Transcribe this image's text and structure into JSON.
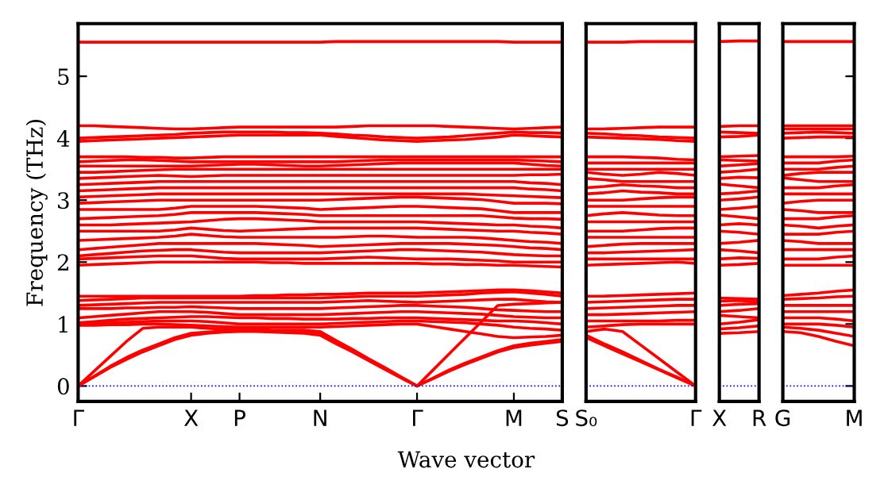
{
  "chart_data": [
    {
      "type": "line",
      "ylabel": "Frequency (THz)",
      "xlabel": "Wave vector",
      "categories": [
        "Γ",
        null,
        null,
        null,
        null,
        null,
        null,
        "X",
        null,
        null,
        "P",
        null,
        null,
        null,
        null,
        "N",
        null,
        null,
        null,
        null,
        null,
        "Γ",
        null,
        null,
        null,
        null,
        null,
        "M",
        null,
        null,
        "S"
      ],
      "ylim": [
        -0.25,
        5.85
      ],
      "yticks": [
        0,
        1,
        2,
        3,
        4,
        5
      ],
      "ref_lines": [
        {
          "axis": "y",
          "value": 0,
          "color": "#0000ff",
          "line_style": "dotted"
        }
      ],
      "series": [
        {
          "color": "#ff0000",
          "values": [
            0,
            0.15,
            0.3,
            0.43,
            0.55,
            0.65,
            0.75,
            0.82,
            0.85,
            0.87,
            0.88,
            0.88,
            0.87,
            0.86,
            0.85,
            0.82,
            0.68,
            0.55,
            0.41,
            0.27,
            0.13,
            0,
            0.12,
            0.24,
            0.35,
            0.45,
            0.55,
            0.62,
            0.66,
            0.69,
            0.72
          ]
        },
        {
          "color": "#ff0000",
          "values": [
            0,
            0.16,
            0.32,
            0.46,
            0.58,
            0.68,
            0.78,
            0.85,
            0.87,
            0.89,
            0.9,
            0.9,
            0.89,
            0.88,
            0.87,
            0.85,
            0.7,
            0.56,
            0.42,
            0.28,
            0.14,
            0,
            0.13,
            0.26,
            0.37,
            0.47,
            0.57,
            0.65,
            0.69,
            0.72,
            0.75
          ]
        },
        {
          "color": "#ff0000",
          "values": [
            0,
            0.24,
            0.48,
            0.72,
            0.93,
            0.95,
            0.95,
            0.95,
            0.93,
            0.92,
            0.92,
            0.92,
            0.9,
            0.9,
            0.9,
            0.88,
            0.73,
            0.59,
            0.44,
            0.3,
            0.15,
            0,
            0.26,
            0.52,
            0.78,
            1.04,
            1.3,
            1.32,
            1.33,
            1.34,
            1.35
          ]
        },
        {
          "color": "#ff0000",
          "values": [
            0.98,
            0.98,
            0.99,
            0.99,
            1.0,
            1.0,
            0.99,
            0.98,
            0.97,
            0.96,
            0.95,
            0.95,
            0.95,
            0.95,
            0.95,
            0.95,
            0.96,
            0.97,
            0.98,
            0.99,
            1.0,
            1.0,
            0.96,
            0.92,
            0.88,
            0.84,
            0.8,
            0.78,
            0.79,
            0.8,
            0.82
          ]
        },
        {
          "color": "#ff0000",
          "values": [
            1.0,
            1.01,
            1.02,
            1.03,
            1.04,
            1.05,
            1.05,
            1.05,
            1.04,
            1.02,
            1.0,
            1.0,
            1.0,
            1.0,
            1.0,
            1.0,
            1.01,
            1.02,
            1.03,
            1.04,
            1.05,
            1.05,
            1.04,
            1.03,
            1.02,
            1.0,
            0.98,
            0.95,
            0.93,
            0.92,
            0.9
          ]
        },
        {
          "color": "#ff0000",
          "values": [
            1.02,
            1.04,
            1.06,
            1.08,
            1.09,
            1.1,
            1.11,
            1.12,
            1.12,
            1.11,
            1.1,
            1.1,
            1.09,
            1.09,
            1.08,
            1.08,
            1.08,
            1.09,
            1.09,
            1.1,
            1.1,
            1.1,
            1.09,
            1.08,
            1.07,
            1.06,
            1.05,
            1.05,
            1.04,
            1.02,
            1.0
          ]
        },
        {
          "color": "#ff0000",
          "values": [
            1.1,
            1.12,
            1.14,
            1.16,
            1.18,
            1.2,
            1.2,
            1.2,
            1.19,
            1.17,
            1.15,
            1.15,
            1.15,
            1.15,
            1.15,
            1.15,
            1.16,
            1.17,
            1.18,
            1.19,
            1.2,
            1.2,
            1.19,
            1.18,
            1.17,
            1.16,
            1.14,
            1.12,
            1.11,
            1.1,
            1.1
          ]
        },
        {
          "color": "#ff0000",
          "values": [
            1.25,
            1.25,
            1.25,
            1.26,
            1.26,
            1.27,
            1.27,
            1.28,
            1.27,
            1.26,
            1.25,
            1.25,
            1.25,
            1.25,
            1.25,
            1.25,
            1.26,
            1.27,
            1.28,
            1.29,
            1.3,
            1.3,
            1.29,
            1.28,
            1.27,
            1.25,
            1.23,
            1.22,
            1.21,
            1.2,
            1.2
          ]
        },
        {
          "color": "#ff0000",
          "values": [
            1.3,
            1.31,
            1.32,
            1.33,
            1.34,
            1.35,
            1.35,
            1.35,
            1.35,
            1.35,
            1.35,
            1.35,
            1.35,
            1.35,
            1.35,
            1.35,
            1.36,
            1.37,
            1.38,
            1.37,
            1.36,
            1.35,
            1.36,
            1.37,
            1.38,
            1.39,
            1.4,
            1.4,
            1.38,
            1.36,
            1.35
          ]
        },
        {
          "color": "#ff0000",
          "values": [
            1.38,
            1.39,
            1.4,
            1.41,
            1.42,
            1.42,
            1.42,
            1.42,
            1.42,
            1.42,
            1.42,
            1.42,
            1.42,
            1.42,
            1.42,
            1.42,
            1.43,
            1.44,
            1.45,
            1.45,
            1.45,
            1.45,
            1.46,
            1.47,
            1.48,
            1.5,
            1.51,
            1.52,
            1.5,
            1.48,
            1.45
          ]
        },
        {
          "color": "#ff0000",
          "values": [
            1.45,
            1.45,
            1.45,
            1.45,
            1.45,
            1.45,
            1.45,
            1.45,
            1.45,
            1.45,
            1.45,
            1.46,
            1.46,
            1.47,
            1.47,
            1.48,
            1.48,
            1.49,
            1.5,
            1.5,
            1.5,
            1.5,
            1.51,
            1.52,
            1.53,
            1.54,
            1.55,
            1.55,
            1.54,
            1.52,
            1.5
          ]
        },
        {
          "color": "#ff0000",
          "values": [
            1.95,
            1.96,
            1.97,
            1.98,
            1.99,
            2.0,
            2.0,
            2.0,
            2.0,
            2.0,
            2.0,
            2.0,
            1.99,
            1.99,
            1.98,
            1.98,
            1.98,
            1.98,
            1.98,
            1.98,
            1.98,
            1.98,
            1.97,
            1.97,
            1.96,
            1.96,
            1.95,
            1.95,
            1.94,
            1.93,
            1.92
          ]
        },
        {
          "color": "#ff0000",
          "values": [
            2.05,
            2.06,
            2.07,
            2.08,
            2.09,
            2.1,
            2.1,
            2.1,
            2.08,
            2.06,
            2.05,
            2.05,
            2.05,
            2.05,
            2.05,
            2.05,
            2.06,
            2.07,
            2.08,
            2.07,
            2.06,
            2.05,
            2.05,
            2.05,
            2.04,
            2.03,
            2.02,
            2.0,
            2.0,
            2.0,
            2.0
          ]
        },
        {
          "color": "#ff0000",
          "values": [
            2.1,
            2.12,
            2.14,
            2.16,
            2.18,
            2.19,
            2.2,
            2.2,
            2.18,
            2.16,
            2.15,
            2.15,
            2.15,
            2.15,
            2.15,
            2.15,
            2.16,
            2.17,
            2.18,
            2.19,
            2.2,
            2.2,
            2.19,
            2.18,
            2.17,
            2.16,
            2.14,
            2.12,
            2.11,
            2.1,
            2.1
          ]
        },
        {
          "color": "#ff0000",
          "values": [
            2.2,
            2.22,
            2.24,
            2.26,
            2.28,
            2.3,
            2.3,
            2.3,
            2.3,
            2.3,
            2.3,
            2.3,
            2.29,
            2.28,
            2.27,
            2.25,
            2.26,
            2.27,
            2.28,
            2.29,
            2.3,
            2.3,
            2.3,
            2.3,
            2.29,
            2.28,
            2.27,
            2.25,
            2.23,
            2.22,
            2.2
          ]
        },
        {
          "color": "#ff0000",
          "values": [
            2.35,
            2.36,
            2.37,
            2.38,
            2.39,
            2.4,
            2.42,
            2.45,
            2.43,
            2.41,
            2.4,
            2.4,
            2.4,
            2.4,
            2.4,
            2.4,
            2.4,
            2.41,
            2.42,
            2.42,
            2.41,
            2.4,
            2.4,
            2.4,
            2.4,
            2.39,
            2.37,
            2.35,
            2.33,
            2.32,
            2.3
          ]
        },
        {
          "color": "#ff0000",
          "values": [
            2.5,
            2.5,
            2.5,
            2.5,
            2.5,
            2.5,
            2.52,
            2.55,
            2.53,
            2.51,
            2.5,
            2.51,
            2.52,
            2.53,
            2.54,
            2.55,
            2.55,
            2.55,
            2.55,
            2.55,
            2.55,
            2.55,
            2.54,
            2.53,
            2.52,
            2.51,
            2.5,
            2.5,
            2.48,
            2.47,
            2.45
          ]
        },
        {
          "color": "#ff0000",
          "values": [
            2.6,
            2.6,
            2.6,
            2.61,
            2.62,
            2.63,
            2.64,
            2.65,
            2.67,
            2.69,
            2.7,
            2.7,
            2.69,
            2.68,
            2.67,
            2.65,
            2.65,
            2.65,
            2.65,
            2.65,
            2.65,
            2.65,
            2.64,
            2.63,
            2.62,
            2.61,
            2.6,
            2.6,
            2.58,
            2.57,
            2.55
          ]
        },
        {
          "color": "#ff0000",
          "values": [
            2.7,
            2.71,
            2.72,
            2.73,
            2.74,
            2.75,
            2.77,
            2.8,
            2.8,
            2.8,
            2.8,
            2.8,
            2.79,
            2.78,
            2.77,
            2.75,
            2.75,
            2.75,
            2.75,
            2.75,
            2.75,
            2.75,
            2.75,
            2.75,
            2.75,
            2.75,
            2.73,
            2.71,
            2.7,
            2.7,
            2.69
          ]
        },
        {
          "color": "#ff0000",
          "values": [
            2.85,
            2.85,
            2.85,
            2.85,
            2.85,
            2.85,
            2.87,
            2.9,
            2.9,
            2.9,
            2.9,
            2.9,
            2.89,
            2.88,
            2.87,
            2.85,
            2.86,
            2.87,
            2.88,
            2.89,
            2.9,
            2.9,
            2.89,
            2.88,
            2.87,
            2.86,
            2.83,
            2.8,
            2.8,
            2.8,
            2.8
          ]
        },
        {
          "color": "#ff0000",
          "values": [
            2.95,
            2.96,
            2.97,
            2.98,
            2.99,
            3.0,
            3.0,
            3.0,
            3.0,
            3.0,
            3.0,
            3.0,
            3.0,
            3.0,
            3.0,
            3.0,
            3.01,
            3.02,
            3.03,
            3.04,
            3.05,
            3.05,
            3.04,
            3.03,
            3.02,
            3.01,
            2.98,
            2.95,
            2.95,
            2.95,
            2.94
          ]
        },
        {
          "color": "#ff0000",
          "values": [
            3.05,
            3.06,
            3.07,
            3.08,
            3.09,
            3.1,
            3.1,
            3.1,
            3.1,
            3.1,
            3.1,
            3.1,
            3.1,
            3.1,
            3.1,
            3.1,
            3.1,
            3.1,
            3.1,
            3.1,
            3.1,
            3.1,
            3.1,
            3.1,
            3.1,
            3.09,
            3.08,
            3.07,
            3.06,
            3.05,
            3.04
          ]
        },
        {
          "color": "#ff0000",
          "values": [
            3.15,
            3.16,
            3.17,
            3.18,
            3.19,
            3.2,
            3.2,
            3.2,
            3.2,
            3.2,
            3.2,
            3.2,
            3.2,
            3.2,
            3.2,
            3.2,
            3.2,
            3.2,
            3.2,
            3.2,
            3.2,
            3.2,
            3.2,
            3.2,
            3.2,
            3.2,
            3.2,
            3.2,
            3.18,
            3.17,
            3.15
          ]
        },
        {
          "color": "#ff0000",
          "values": [
            3.25,
            3.26,
            3.27,
            3.28,
            3.29,
            3.3,
            3.3,
            3.3,
            3.3,
            3.3,
            3.3,
            3.3,
            3.3,
            3.3,
            3.3,
            3.3,
            3.3,
            3.3,
            3.3,
            3.3,
            3.3,
            3.3,
            3.3,
            3.3,
            3.3,
            3.3,
            3.3,
            3.3,
            3.28,
            3.27,
            3.25
          ]
        },
        {
          "color": "#ff0000",
          "values": [
            3.35,
            3.36,
            3.37,
            3.38,
            3.39,
            3.4,
            3.39,
            3.38,
            3.39,
            3.4,
            3.4,
            3.4,
            3.4,
            3.4,
            3.4,
            3.4,
            3.4,
            3.4,
            3.4,
            3.4,
            3.4,
            3.4,
            3.4,
            3.4,
            3.4,
            3.4,
            3.4,
            3.4,
            3.41,
            3.41,
            3.42
          ]
        },
        {
          "color": "#ff0000",
          "values": [
            3.45,
            3.45,
            3.46,
            3.47,
            3.48,
            3.49,
            3.5,
            3.5,
            3.5,
            3.5,
            3.5,
            3.5,
            3.5,
            3.5,
            3.5,
            3.5,
            3.5,
            3.5,
            3.5,
            3.5,
            3.5,
            3.5,
            3.5,
            3.5,
            3.5,
            3.5,
            3.5,
            3.5,
            3.5,
            3.5,
            3.5
          ]
        },
        {
          "color": "#ff0000",
          "values": [
            3.55,
            3.55,
            3.55,
            3.55,
            3.55,
            3.55,
            3.55,
            3.55,
            3.56,
            3.57,
            3.58,
            3.58,
            3.57,
            3.56,
            3.55,
            3.55,
            3.56,
            3.57,
            3.58,
            3.59,
            3.6,
            3.6,
            3.6,
            3.6,
            3.6,
            3.6,
            3.6,
            3.6,
            3.58,
            3.56,
            3.55
          ]
        },
        {
          "color": "#ff0000",
          "values": [
            3.62,
            3.63,
            3.64,
            3.65,
            3.65,
            3.64,
            3.63,
            3.62,
            3.62,
            3.62,
            3.62,
            3.62,
            3.62,
            3.62,
            3.62,
            3.62,
            3.62,
            3.63,
            3.64,
            3.65,
            3.65,
            3.65,
            3.65,
            3.65,
            3.65,
            3.65,
            3.65,
            3.65,
            3.64,
            3.63,
            3.62
          ]
        },
        {
          "color": "#ff0000",
          "values": [
            3.7,
            3.7,
            3.7,
            3.7,
            3.69,
            3.69,
            3.68,
            3.68,
            3.69,
            3.7,
            3.7,
            3.7,
            3.7,
            3.7,
            3.7,
            3.7,
            3.7,
            3.7,
            3.7,
            3.7,
            3.7,
            3.7,
            3.7,
            3.7,
            3.7,
            3.7,
            3.7,
            3.7,
            3.7,
            3.7,
            3.7
          ]
        },
        {
          "color": "#ff0000",
          "values": [
            3.95,
            3.96,
            3.97,
            3.98,
            3.99,
            4.0,
            4.01,
            4.02,
            4.03,
            4.04,
            4.05,
            4.05,
            4.05,
            4.05,
            4.05,
            4.05,
            4.03,
            4.01,
            3.99,
            3.97,
            3.96,
            3.95,
            3.96,
            3.97,
            3.98,
            4.0,
            4.02,
            4.05,
            4.04,
            4.03,
            4.02
          ]
        },
        {
          "color": "#ff0000",
          "values": [
            4.0,
            4.01,
            4.02,
            4.03,
            4.04,
            4.05,
            4.06,
            4.08,
            4.09,
            4.1,
            4.1,
            4.1,
            4.1,
            4.09,
            4.09,
            4.08,
            4.07,
            4.05,
            4.04,
            4.02,
            4.01,
            4.0,
            4.01,
            4.02,
            4.04,
            4.06,
            4.08,
            4.1,
            4.09,
            4.09,
            4.08
          ]
        },
        {
          "color": "#ff0000",
          "values": [
            4.2,
            4.2,
            4.19,
            4.18,
            4.17,
            4.16,
            4.15,
            4.15,
            4.16,
            4.17,
            4.18,
            4.18,
            4.18,
            4.18,
            4.18,
            4.18,
            4.18,
            4.19,
            4.2,
            4.2,
            4.2,
            4.2,
            4.2,
            4.19,
            4.18,
            4.17,
            4.16,
            4.15,
            4.16,
            4.17,
            4.18
          ]
        },
        {
          "color": "#ff0000",
          "values": [
            5.55,
            5.55,
            5.55,
            5.55,
            5.55,
            5.55,
            5.55,
            5.55,
            5.55,
            5.55,
            5.55,
            5.55,
            5.55,
            5.55,
            5.55,
            5.55,
            5.56,
            5.56,
            5.56,
            5.56,
            5.56,
            5.56,
            5.56,
            5.56,
            5.56,
            5.56,
            5.56,
            5.55,
            5.55,
            5.55,
            5.55
          ]
        }
      ]
    },
    {
      "type": "line",
      "tick_labels": "x",
      "categories": [
        "S₀",
        null,
        null,
        null,
        null,
        null,
        "Γ"
      ],
      "ylim": [
        -0.25,
        5.85
      ],
      "yticks": [
        0,
        1,
        2,
        3,
        4,
        5
      ],
      "ref_lines": [
        {
          "axis": "y",
          "value": 0,
          "color": "#0000ff",
          "line_style": "dotted"
        }
      ],
      "series": [
        {
          "color": "#ff0000",
          "values": [
            0.78,
            0.65,
            0.52,
            0.39,
            0.26,
            0.13,
            0
          ]
        },
        {
          "color": "#ff0000",
          "values": [
            0.82,
            0.68,
            0.55,
            0.41,
            0.27,
            0.14,
            0
          ]
        },
        {
          "color": "#ff0000",
          "values": [
            0.88,
            0.92,
            0.88,
            0.66,
            0.44,
            0.22,
            0
          ]
        },
        {
          "color": "#ff0000",
          "values": [
            0.95,
            0.97,
            0.99,
            1.0,
            1.0,
            1.0,
            1.0
          ]
        },
        {
          "color": "#ff0000",
          "values": [
            1.05,
            1.05,
            1.05,
            1.05,
            1.05,
            1.06,
            1.06
          ]
        },
        {
          "color": "#ff0000",
          "values": [
            1.15,
            1.15,
            1.16,
            1.17,
            1.18,
            1.19,
            1.2
          ]
        },
        {
          "color": "#ff0000",
          "values": [
            1.25,
            1.26,
            1.27,
            1.28,
            1.29,
            1.3,
            1.3
          ]
        },
        {
          "color": "#ff0000",
          "values": [
            1.35,
            1.36,
            1.37,
            1.38,
            1.39,
            1.4,
            1.4
          ]
        },
        {
          "color": "#ff0000",
          "values": [
            1.45,
            1.45,
            1.46,
            1.47,
            1.48,
            1.49,
            1.5
          ]
        },
        {
          "color": "#ff0000",
          "values": [
            1.95,
            1.96,
            1.97,
            1.98,
            1.99,
            2.0,
            1.98
          ]
        },
        {
          "color": "#ff0000",
          "values": [
            2.05,
            2.05,
            2.05,
            2.05,
            2.05,
            2.05,
            2.05
          ]
        },
        {
          "color": "#ff0000",
          "values": [
            2.15,
            2.15,
            2.16,
            2.17,
            2.18,
            2.19,
            2.2
          ]
        },
        {
          "color": "#ff0000",
          "values": [
            2.25,
            2.27,
            2.29,
            2.3,
            2.3,
            2.3,
            2.3
          ]
        },
        {
          "color": "#ff0000",
          "values": [
            2.4,
            2.4,
            2.4,
            2.4,
            2.4,
            2.4,
            2.4
          ]
        },
        {
          "color": "#ff0000",
          "values": [
            2.5,
            2.5,
            2.5,
            2.52,
            2.54,
            2.55,
            2.55
          ]
        },
        {
          "color": "#ff0000",
          "values": [
            2.65,
            2.65,
            2.65,
            2.65,
            2.65,
            2.65,
            2.65
          ]
        },
        {
          "color": "#ff0000",
          "values": [
            2.75,
            2.78,
            2.8,
            2.78,
            2.76,
            2.75,
            2.75
          ]
        },
        {
          "color": "#ff0000",
          "values": [
            2.9,
            2.9,
            2.9,
            2.9,
            2.9,
            2.9,
            2.9
          ]
        },
        {
          "color": "#ff0000",
          "values": [
            3.0,
            3.0,
            3.0,
            3.02,
            3.04,
            3.05,
            3.05
          ]
        },
        {
          "color": "#ff0000",
          "values": [
            3.1,
            3.12,
            3.15,
            3.13,
            3.12,
            3.1,
            3.1
          ]
        },
        {
          "color": "#ff0000",
          "values": [
            3.2,
            3.22,
            3.25,
            3.23,
            3.22,
            3.2,
            3.2
          ]
        },
        {
          "color": "#ff0000",
          "values": [
            3.35,
            3.33,
            3.3,
            3.3,
            3.3,
            3.3,
            3.3
          ]
        },
        {
          "color": "#ff0000",
          "values": [
            3.45,
            3.42,
            3.4,
            3.42,
            3.45,
            3.43,
            3.4
          ]
        },
        {
          "color": "#ff0000",
          "values": [
            3.5,
            3.5,
            3.5,
            3.5,
            3.5,
            3.5,
            3.5
          ]
        },
        {
          "color": "#ff0000",
          "values": [
            3.6,
            3.6,
            3.6,
            3.6,
            3.6,
            3.6,
            3.6
          ]
        },
        {
          "color": "#ff0000",
          "values": [
            3.7,
            3.7,
            3.7,
            3.69,
            3.68,
            3.66,
            3.65
          ]
        },
        {
          "color": "#ff0000",
          "values": [
            4.02,
            4.01,
            4.0,
            3.99,
            3.98,
            3.96,
            3.95
          ]
        },
        {
          "color": "#ff0000",
          "values": [
            4.08,
            4.07,
            4.05,
            4.04,
            4.02,
            4.01,
            4.0
          ]
        },
        {
          "color": "#ff0000",
          "values": [
            4.15,
            4.15,
            4.16,
            4.17,
            4.18,
            4.18,
            4.18
          ]
        },
        {
          "color": "#ff0000",
          "values": [
            5.55,
            5.55,
            5.55,
            5.56,
            5.56,
            5.56,
            5.56
          ]
        }
      ]
    },
    {
      "type": "line",
      "tick_labels": "x",
      "categories": [
        "X",
        null,
        "R"
      ],
      "ylim": [
        -0.25,
        5.85
      ],
      "yticks": [
        0,
        1,
        2,
        3,
        4,
        5
      ],
      "ref_lines": [
        {
          "axis": "y",
          "value": 0,
          "color": "#0000ff",
          "line_style": "dotted"
        }
      ],
      "series": [
        {
          "color": "#ff0000",
          "values": [
            0.85,
            0.86,
            0.88
          ]
        },
        {
          "color": "#ff0000",
          "values": [
            0.92,
            0.94,
            0.97
          ]
        },
        {
          "color": "#ff0000",
          "values": [
            1.0,
            1.03,
            1.07
          ]
        },
        {
          "color": "#ff0000",
          "values": [
            1.14,
            1.12,
            1.1
          ]
        },
        {
          "color": "#ff0000",
          "values": [
            1.2,
            1.22,
            1.25
          ]
        },
        {
          "color": "#ff0000",
          "values": [
            1.3,
            1.32,
            1.33
          ]
        },
        {
          "color": "#ff0000",
          "values": [
            1.37,
            1.38,
            1.36
          ]
        },
        {
          "color": "#ff0000",
          "values": [
            1.42,
            1.41,
            1.4
          ]
        },
        {
          "color": "#ff0000",
          "values": [
            1.95,
            1.96,
            1.98
          ]
        },
        {
          "color": "#ff0000",
          "values": [
            2.05,
            2.07,
            2.06
          ]
        },
        {
          "color": "#ff0000",
          "values": [
            2.2,
            2.18,
            2.15
          ]
        },
        {
          "color": "#ff0000",
          "values": [
            2.3,
            2.32,
            2.35
          ]
        },
        {
          "color": "#ff0000",
          "values": [
            2.5,
            2.48,
            2.45
          ]
        },
        {
          "color": "#ff0000",
          "values": [
            2.6,
            2.62,
            2.6
          ]
        },
        {
          "color": "#ff0000",
          "values": [
            2.76,
            2.73,
            2.7
          ]
        },
        {
          "color": "#ff0000",
          "values": [
            2.85,
            2.87,
            2.9
          ]
        },
        {
          "color": "#ff0000",
          "values": [
            3.0,
            3.02,
            3.05
          ]
        },
        {
          "color": "#ff0000",
          "values": [
            3.1,
            3.12,
            3.15
          ]
        },
        {
          "color": "#ff0000",
          "values": [
            3.26,
            3.23,
            3.2
          ]
        },
        {
          "color": "#ff0000",
          "values": [
            3.35,
            3.37,
            3.36
          ]
        },
        {
          "color": "#ff0000",
          "values": [
            3.45,
            3.47,
            3.5
          ]
        },
        {
          "color": "#ff0000",
          "values": [
            3.55,
            3.57,
            3.59
          ]
        },
        {
          "color": "#ff0000",
          "values": [
            3.65,
            3.64,
            3.63
          ]
        },
        {
          "color": "#ff0000",
          "values": [
            3.7,
            3.71,
            3.72
          ]
        },
        {
          "color": "#ff0000",
          "values": [
            4.02,
            4.03,
            4.05
          ]
        },
        {
          "color": "#ff0000",
          "values": [
            4.1,
            4.09,
            4.08
          ]
        },
        {
          "color": "#ff0000",
          "values": [
            4.19,
            4.2,
            4.2
          ]
        },
        {
          "color": "#ff0000",
          "values": [
            5.56,
            5.57,
            5.57
          ]
        }
      ]
    },
    {
      "type": "line",
      "tick_labels": "x",
      "categories": [
        "G",
        null,
        null,
        null,
        "M"
      ],
      "ylim": [
        -0.25,
        5.85
      ],
      "yticks": [
        0,
        1,
        2,
        3,
        4,
        5
      ],
      "ref_lines": [
        {
          "axis": "y",
          "value": 0,
          "color": "#0000ff",
          "line_style": "dotted"
        }
      ],
      "series": [
        {
          "color": "#ff0000",
          "values": [
            0.88,
            0.86,
            0.8,
            0.72,
            0.65
          ]
        },
        {
          "color": "#ff0000",
          "values": [
            0.95,
            0.93,
            0.9,
            0.85,
            0.8
          ]
        },
        {
          "color": "#ff0000",
          "values": [
            1.0,
            1.0,
            1.0,
            0.98,
            0.95
          ]
        },
        {
          "color": "#ff0000",
          "values": [
            1.1,
            1.1,
            1.1,
            1.08,
            1.05
          ]
        },
        {
          "color": "#ff0000",
          "values": [
            1.2,
            1.2,
            1.2,
            1.2,
            1.2
          ]
        },
        {
          "color": "#ff0000",
          "values": [
            1.3,
            1.3,
            1.3,
            1.3,
            1.3
          ]
        },
        {
          "color": "#ff0000",
          "values": [
            1.4,
            1.41,
            1.42,
            1.44,
            1.45
          ]
        },
        {
          "color": "#ff0000",
          "values": [
            1.46,
            1.48,
            1.5,
            1.53,
            1.55
          ]
        },
        {
          "color": "#ff0000",
          "values": [
            1.95,
            1.95,
            1.95,
            1.95,
            1.95
          ]
        },
        {
          "color": "#ff0000",
          "values": [
            2.05,
            2.05,
            2.05,
            2.08,
            2.1
          ]
        },
        {
          "color": "#ff0000",
          "values": [
            2.2,
            2.2,
            2.2,
            2.2,
            2.2
          ]
        },
        {
          "color": "#ff0000",
          "values": [
            2.35,
            2.33,
            2.3,
            2.3,
            2.3
          ]
        },
        {
          "color": "#ff0000",
          "values": [
            2.45,
            2.45,
            2.45,
            2.48,
            2.5
          ]
        },
        {
          "color": "#ff0000",
          "values": [
            2.6,
            2.58,
            2.55,
            2.58,
            2.6
          ]
        },
        {
          "color": "#ff0000",
          "values": [
            2.7,
            2.7,
            2.7,
            2.73,
            2.75
          ]
        },
        {
          "color": "#ff0000",
          "values": [
            2.85,
            2.83,
            2.8,
            2.8,
            2.8
          ]
        },
        {
          "color": "#ff0000",
          "values": [
            2.95,
            2.98,
            3.0,
            3.0,
            3.0
          ]
        },
        {
          "color": "#ff0000",
          "values": [
            3.1,
            3.1,
            3.1,
            3.1,
            3.1
          ]
        },
        {
          "color": "#ff0000",
          "values": [
            3.2,
            3.2,
            3.2,
            3.23,
            3.25
          ]
        },
        {
          "color": "#ff0000",
          "values": [
            3.36,
            3.33,
            3.3,
            3.3,
            3.3
          ]
        },
        {
          "color": "#ff0000",
          "values": [
            3.4,
            3.43,
            3.45,
            3.45,
            3.45
          ]
        },
        {
          "color": "#ff0000",
          "values": [
            3.5,
            3.5,
            3.5,
            3.53,
            3.55
          ]
        },
        {
          "color": "#ff0000",
          "values": [
            3.6,
            3.6,
            3.6,
            3.63,
            3.65
          ]
        },
        {
          "color": "#ff0000",
          "values": [
            3.7,
            3.7,
            3.7,
            3.7,
            3.71
          ]
        },
        {
          "color": "#ff0000",
          "values": [
            4.0,
            4.01,
            4.02,
            4.02,
            4.02
          ]
        },
        {
          "color": "#ff0000",
          "values": [
            4.08,
            4.09,
            4.1,
            4.09,
            4.08
          ]
        },
        {
          "color": "#ff0000",
          "values": [
            4.15,
            4.15,
            4.15,
            4.15,
            4.15
          ]
        },
        {
          "color": "#ff0000",
          "values": [
            4.2,
            4.2,
            4.2,
            4.2,
            4.2
          ]
        },
        {
          "color": "#ff0000",
          "values": [
            5.56,
            5.56,
            5.56,
            5.56,
            5.56
          ]
        }
      ]
    }
  ]
}
